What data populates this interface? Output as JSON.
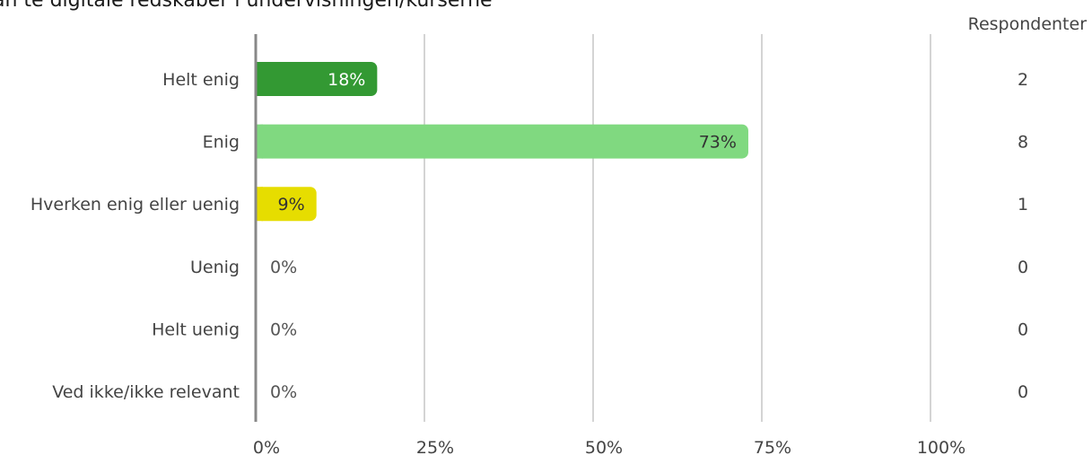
{
  "chart_data": {
    "type": "bar",
    "orientation": "horizontal",
    "title": "an te digitale redskaber i undervisningen/kurserne",
    "right_column_header": "Respondenter",
    "categories": [
      "Helt enig",
      "Enig",
      "Hverken enig eller uenig",
      "Uenig",
      "Helt uenig",
      "Ved ikke/ikke relevant"
    ],
    "values": [
      18,
      73,
      9,
      0,
      0,
      0
    ],
    "value_labels": [
      "18%",
      "73%",
      "9%",
      "0%",
      "0%",
      "0%"
    ],
    "respondents": [
      "2",
      "8",
      "1",
      "0",
      "0",
      "0"
    ],
    "colors": [
      "#339933",
      "#80d980",
      "#e6dd00",
      "#cccccc",
      "#cccccc",
      "#cccccc"
    ],
    "value_label_colors": [
      "#ffffff",
      "#333333",
      "#333333",
      "#555555",
      "#555555",
      "#555555"
    ],
    "xlim": [
      0,
      100
    ],
    "xticks": [
      0,
      25,
      50,
      75,
      100
    ],
    "xtick_labels": [
      "0%",
      "25%",
      "50%",
      "75%",
      "100%"
    ],
    "grid": true
  }
}
